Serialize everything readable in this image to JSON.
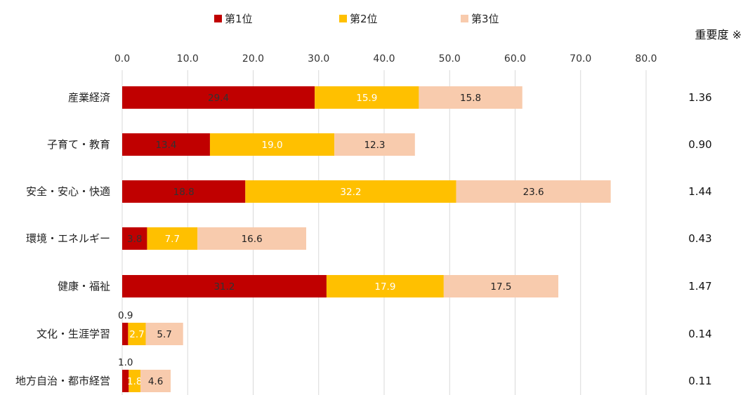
{
  "chart_data": {
    "type": "bar",
    "orientation": "horizontal",
    "stacked": true,
    "categories": [
      "産業経済",
      "子育て・教育",
      "安全・安心・快適",
      "環境・エネルギー",
      "健康・福祉",
      "文化・生涯学習",
      "地方自治・都市経営"
    ],
    "series": [
      {
        "name": "第1位",
        "values": [
          29.4,
          13.4,
          18.8,
          3.8,
          31.2,
          0.9,
          1.0
        ],
        "labels": [
          "29.4",
          "13.4",
          "18.8",
          "3.8",
          "31.2",
          "0.9",
          "1.0"
        ]
      },
      {
        "name": "第2位",
        "values": [
          15.9,
          19.0,
          32.2,
          7.7,
          17.9,
          2.7,
          1.8
        ],
        "labels": [
          "15.9",
          "19.0",
          "32.2",
          "7.7",
          "17.9",
          "2.7",
          "1.8"
        ]
      },
      {
        "name": "第3位",
        "values": [
          15.8,
          12.3,
          23.6,
          16.6,
          17.5,
          5.7,
          4.6
        ],
        "labels": [
          "15.8",
          "12.3",
          "23.6",
          "16.6",
          "17.5",
          "5.7",
          "4.6"
        ]
      }
    ],
    "xlim": [
      0,
      80
    ],
    "xticks": [
      "0.0",
      "10.0",
      "20.0",
      "30.0",
      "40.0",
      "50.0",
      "60.0",
      "70.0",
      "80.0"
    ],
    "grid": true,
    "legend_position": "top",
    "colors": [
      "#c00000",
      "#ffc000",
      "#f8cbad"
    ],
    "label_colors": [
      "#333333",
      "#ffffff",
      "#222222"
    ],
    "importance": {
      "header": "重要度 ※",
      "values": [
        "1.36",
        "0.90",
        "1.44",
        "0.43",
        "1.47",
        "0.14",
        "0.11"
      ]
    }
  }
}
